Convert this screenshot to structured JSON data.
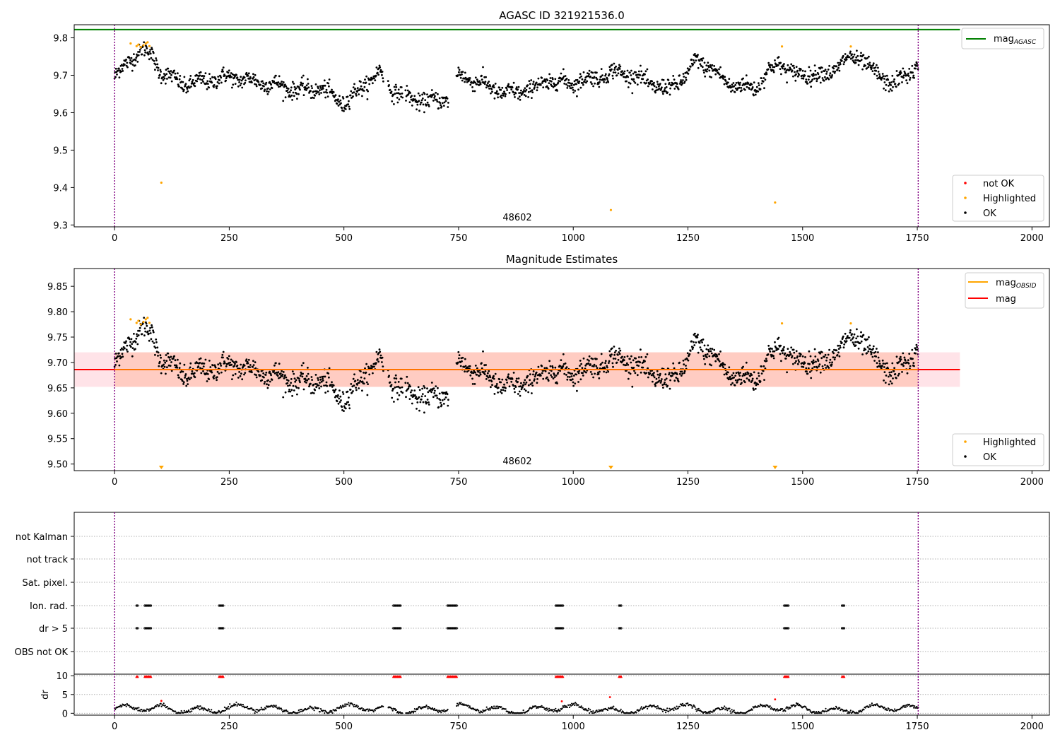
{
  "figure": {
    "annotation": "48602"
  },
  "colors": {
    "ok": "#000000",
    "highlighted": "#ffa500",
    "not_ok": "#ff0000",
    "agasc_line": "#008000",
    "mag_line": "#ff0000",
    "mag_obsid_line": "#ffa500",
    "band_fill": "#ffc0cb",
    "band_inner": "#ffa07a",
    "obsid_boundary": "#800080",
    "grid": "#b0b0b0"
  },
  "chart_data": [
    {
      "type": "scatter",
      "title": "AGASC ID 321921536.0",
      "xlim": [
        -88,
        2038
      ],
      "ylim": [
        9.295,
        9.835
      ],
      "xticks": [
        0,
        250,
        500,
        750,
        1000,
        1250,
        1500,
        1750,
        2000
      ],
      "yticks": [
        9.3,
        9.4,
        9.5,
        9.6,
        9.7,
        9.8
      ],
      "ytick_labels": [
        "9.3",
        "9.4",
        "9.5",
        "9.6",
        "9.7",
        "9.8"
      ],
      "obsid_boundaries": [
        0,
        1752
      ],
      "annotation_x": 875,
      "reference_line": {
        "name": "mag_AGASC",
        "y": 9.822,
        "x_range": [
          -88,
          1843
        ]
      },
      "legends": [
        {
          "position": "upper-right",
          "entries": [
            {
              "label_main": "mag",
              "label_sub": "AGASC",
              "color": "#008000"
            }
          ]
        },
        {
          "position": "lower-right",
          "entries": [
            {
              "label": "not OK",
              "color": "#ff0000"
            },
            {
              "label": "Highlighted",
              "color": "#ffa500"
            },
            {
              "label": "OK",
              "color": "#000000"
            }
          ]
        }
      ],
      "series": [
        {
          "name": "OK",
          "note": "dense time series ~1750 points following the trend curve",
          "trend_x": [
            0,
            40,
            60,
            80,
            100,
            150,
            200,
            250,
            300,
            350,
            400,
            450,
            500,
            550,
            580,
            600,
            650,
            700,
            730,
            750,
            800,
            850,
            900,
            950,
            1000,
            1050,
            1100,
            1150,
            1200,
            1250,
            1270,
            1300,
            1350,
            1400,
            1430,
            1450,
            1480,
            1500,
            1550,
            1600,
            1630,
            1650,
            1700,
            1750
          ],
          "trend_y": [
            9.695,
            9.75,
            9.768,
            9.755,
            9.71,
            9.675,
            9.685,
            9.695,
            9.685,
            9.675,
            9.66,
            9.665,
            9.625,
            9.68,
            9.71,
            9.665,
            9.635,
            9.63,
            9.64,
            9.7,
            9.68,
            9.65,
            9.66,
            9.685,
            9.68,
            9.695,
            9.71,
            9.69,
            9.66,
            9.7,
            9.745,
            9.715,
            9.67,
            9.67,
            9.715,
            9.735,
            9.7,
            9.705,
            9.7,
            9.745,
            9.745,
            9.71,
            9.675,
            9.725
          ]
        },
        {
          "name": "Highlighted",
          "x": [
            35,
            48,
            52,
            57,
            63,
            68,
            72,
            76,
            102,
            1082,
            1440,
            1455,
            1605
          ],
          "y": [
            9.785,
            9.778,
            9.782,
            9.775,
            9.78,
            9.785,
            9.788,
            9.778,
            9.413,
            9.34,
            9.36,
            9.777,
            9.777
          ]
        }
      ]
    },
    {
      "type": "scatter",
      "title": "Magnitude Estimates",
      "xlim": [
        -88,
        2038
      ],
      "ylim": [
        9.487,
        9.885
      ],
      "xticks": [
        0,
        250,
        500,
        750,
        1000,
        1250,
        1500,
        1750,
        2000
      ],
      "yticks": [
        9.5,
        9.55,
        9.6,
        9.65,
        9.7,
        9.75,
        9.8,
        9.85
      ],
      "ytick_labels": [
        "9.50",
        "9.55",
        "9.60",
        "9.65",
        "9.70",
        "9.75",
        "9.80",
        "9.85"
      ],
      "obsid_boundaries": [
        0,
        1752
      ],
      "annotation_x": 875,
      "mag_line": {
        "y": 9.686,
        "x_range": [
          -88,
          1843
        ]
      },
      "mag_band": {
        "y_low": 9.652,
        "y_high": 9.72,
        "x_range": [
          -88,
          1843
        ]
      },
      "mag_obsid": {
        "y": 9.686,
        "x_range": [
          0,
          1752
        ],
        "band_low": 9.652,
        "band_high": 9.72
      },
      "offscale_markers_x": [
        102,
        1082,
        1440
      ],
      "legends": [
        {
          "position": "upper-right",
          "entries": [
            {
              "label_main": "mag",
              "label_sub": "OBSID",
              "color": "#ffa500"
            },
            {
              "label_main": "mag",
              "label_sub": "",
              "color": "#ff0000"
            }
          ]
        },
        {
          "position": "lower-right",
          "entries": [
            {
              "label": "Highlighted",
              "color": "#ffa500"
            },
            {
              "label": "OK",
              "color": "#000000"
            }
          ]
        }
      ],
      "series": [
        {
          "name": "OK",
          "note": "same trend as top panel"
        },
        {
          "name": "Highlighted",
          "x": [
            35,
            48,
            52,
            57,
            63,
            68,
            72,
            76,
            1455,
            1605
          ],
          "y": [
            9.785,
            9.778,
            9.782,
            9.775,
            9.78,
            9.785,
            9.788,
            9.778,
            9.777,
            9.777
          ]
        }
      ]
    },
    {
      "type": "scatter",
      "title": "",
      "xlim": [
        -88,
        2038
      ],
      "flag_rows": [
        "not Kalman",
        "not track",
        "Sat. pixel.",
        "Ion. rad.",
        "dr > 5",
        "OBS not OK"
      ],
      "flag_ranges": [
        {
          "row": "Ion. rad.",
          "ranges": [
            [
              48,
              52
            ],
            [
              66,
              80
            ],
            [
              228,
              238
            ],
            [
              608,
              625
            ],
            [
              726,
              748
            ],
            [
              962,
              978
            ],
            [
              1100,
              1106
            ],
            [
              1460,
              1470
            ],
            [
              1586,
              1592
            ]
          ]
        },
        {
          "row": "dr > 5",
          "ranges": [
            [
              48,
              52
            ],
            [
              66,
              80
            ],
            [
              228,
              238
            ],
            [
              608,
              625
            ],
            [
              726,
              748
            ],
            [
              962,
              978
            ],
            [
              1100,
              1106
            ],
            [
              1460,
              1470
            ],
            [
              1586,
              1592
            ]
          ]
        }
      ],
      "dr_panel": {
        "yticks": [
          0,
          5,
          10
        ],
        "ytick_labels": [
          "0",
          "5",
          "10"
        ],
        "ylim": [
          -0.5,
          10.8
        ],
        "ylabel": "dr",
        "clipped_value": 9.8,
        "outliers_x": [
          102,
          975,
          1080,
          1440
        ],
        "outliers_y": [
          3.3,
          3.2,
          4.3,
          3.7
        ]
      },
      "xticks": [
        0,
        250,
        500,
        750,
        1000,
        1250,
        1500,
        1750,
        2000
      ],
      "obsid_boundaries": [
        0,
        1752
      ]
    }
  ]
}
